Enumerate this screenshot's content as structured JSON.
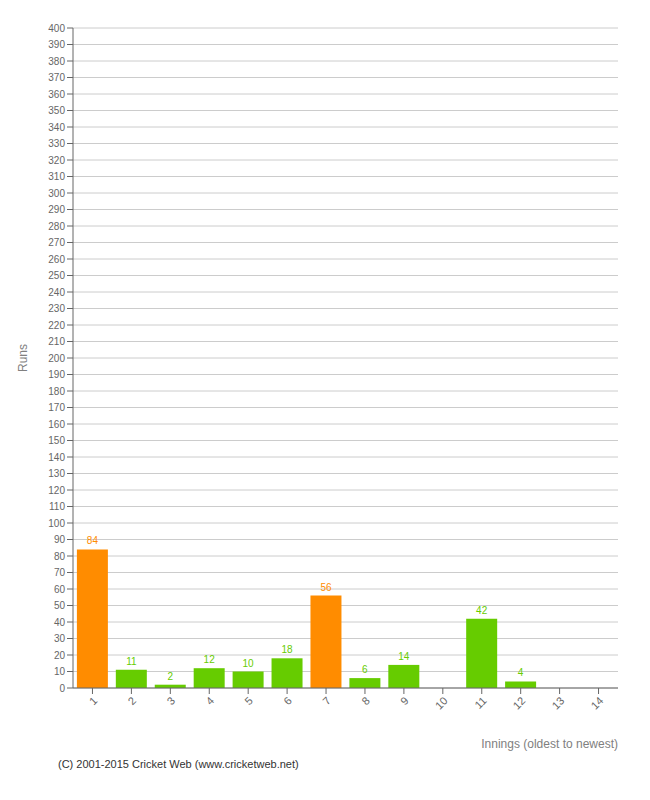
{
  "chart_data": {
    "type": "bar",
    "xlabel": "Innings (oldest to newest)",
    "ylabel": "Runs",
    "categories": [
      "1",
      "2",
      "3",
      "4",
      "5",
      "6",
      "7",
      "8",
      "9",
      "10",
      "11",
      "12",
      "13",
      "14"
    ],
    "values": [
      84,
      11,
      2,
      12,
      10,
      18,
      56,
      6,
      14,
      0,
      42,
      4,
      0,
      0
    ],
    "colors": [
      "#FF8C00",
      "#66CC00",
      "#66CC00",
      "#66CC00",
      "#66CC00",
      "#66CC00",
      "#FF8C00",
      "#66CC00",
      "#66CC00",
      "#66CC00",
      "#66CC00",
      "#66CC00",
      "#66CC00",
      "#66CC00"
    ],
    "ylim": [
      0,
      400
    ],
    "yticks": [
      0,
      10,
      20,
      30,
      40,
      50,
      60,
      70,
      80,
      90,
      100,
      110,
      120,
      130,
      140,
      150,
      160,
      170,
      180,
      190,
      200,
      210,
      220,
      230,
      240,
      250,
      260,
      270,
      280,
      290,
      300,
      310,
      320,
      330,
      340,
      350,
      360,
      370,
      380,
      390,
      400
    ],
    "grid": true,
    "data_labels": true,
    "annotations": [
      "(C) 2001-2015 Cricket Web (www.cricketweb.net)"
    ]
  }
}
